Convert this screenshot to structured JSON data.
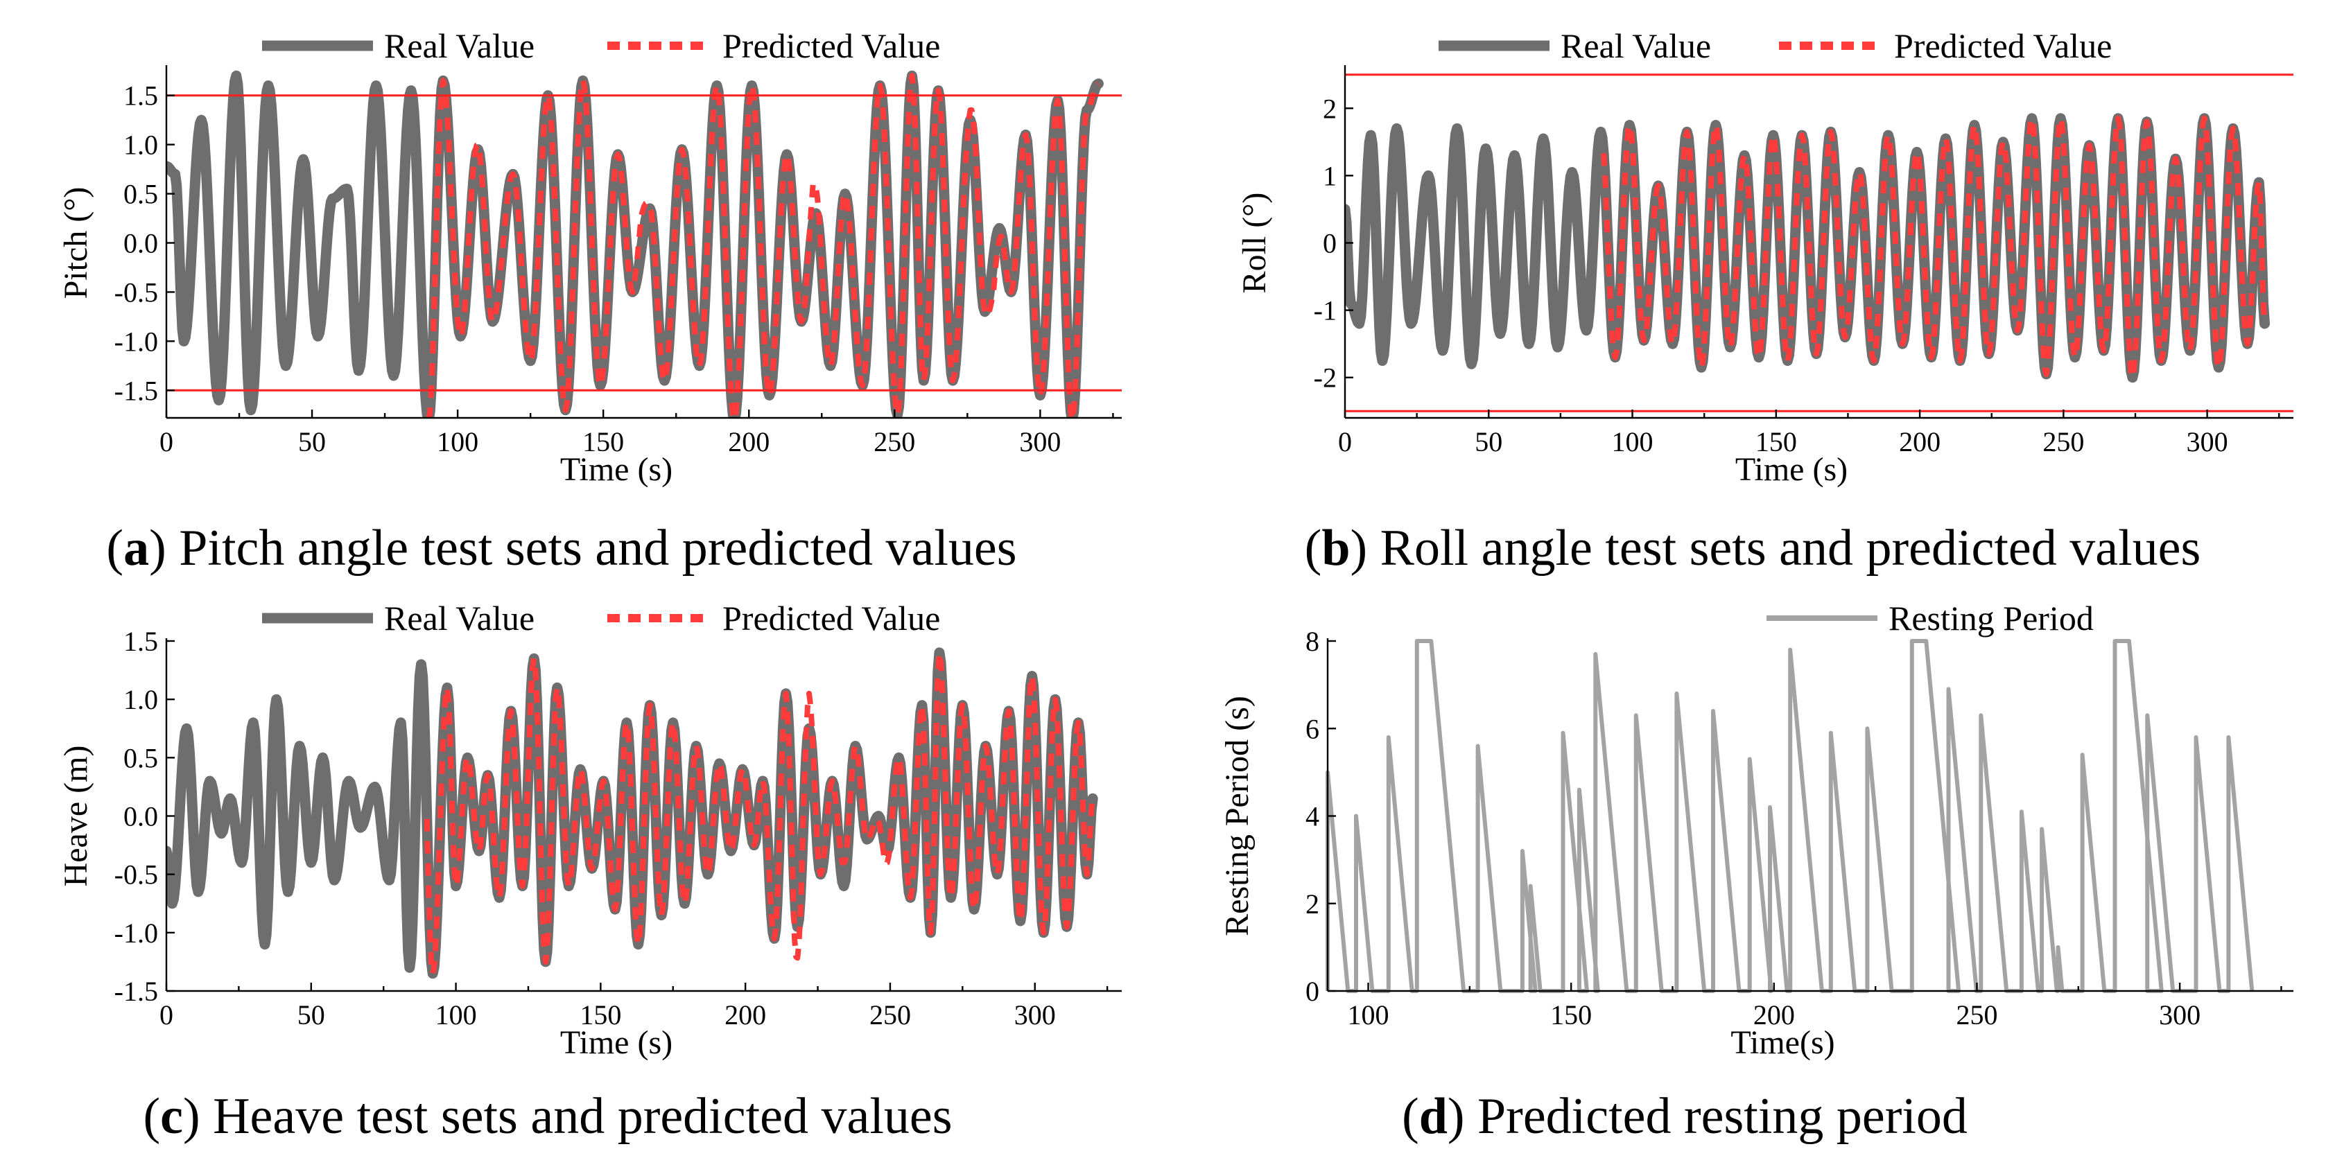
{
  "legend": {
    "real_label": "Real Value",
    "pred_label": "Predicted Value",
    "rest_label": "Resting Period"
  },
  "colors": {
    "real": "#6e6e6e",
    "pred": "#ff3b3b",
    "limit": "#ff1f1f",
    "rest": "#a3a3a3"
  },
  "captions": {
    "a": {
      "letter": "a",
      "text": " Pitch angle test sets and predicted values"
    },
    "b": {
      "letter": "b",
      "text": " Roll angle test sets and predicted values"
    },
    "c": {
      "letter": "c",
      "text": " Heave test sets and predicted values"
    },
    "d": {
      "letter": "d",
      "text": " Predicted resting period"
    }
  },
  "chart_data": [
    {
      "id": "a",
      "type": "line",
      "xlabel": "Time (s)",
      "ylabel": "Pitch (°)",
      "xlim": [
        0,
        328
      ],
      "ylim": [
        -1.78,
        1.78
      ],
      "xticks": [
        0,
        50,
        100,
        150,
        200,
        250,
        300
      ],
      "xtick_labels": [
        "0",
        "50",
        "100",
        "150",
        "200",
        "250",
        "300"
      ],
      "yticks": [
        -1.5,
        -1.0,
        -0.5,
        0.0,
        0.5,
        1.0,
        1.5
      ],
      "ytick_labels": [
        "-1.5",
        "-1.0",
        "-0.5",
        "0.0",
        "0.5",
        "1.0",
        "1.5"
      ],
      "limits": [
        1.5,
        -1.5
      ],
      "pred_start": 90,
      "x_end": 320,
      "real_peaks": [
        [
          0,
          0.78
        ],
        [
          3,
          0.7
        ],
        [
          6,
          -1.0
        ],
        [
          12,
          1.25
        ],
        [
          18,
          -1.6
        ],
        [
          24,
          1.7
        ],
        [
          29,
          -1.7
        ],
        [
          35,
          1.6
        ],
        [
          41,
          -1.25
        ],
        [
          47,
          0.85
        ],
        [
          52,
          -0.95
        ],
        [
          57,
          0.45
        ],
        [
          62,
          0.55
        ],
        [
          66,
          -1.3
        ],
        [
          72,
          1.6
        ],
        [
          78,
          -1.35
        ],
        [
          84,
          1.55
        ],
        [
          90,
          -1.8
        ],
        [
          95,
          1.65
        ],
        [
          101,
          -0.95
        ],
        [
          107,
          0.95
        ],
        [
          112,
          -0.8
        ],
        [
          119,
          0.7
        ],
        [
          125,
          -1.2
        ],
        [
          131,
          1.5
        ],
        [
          137,
          -1.7
        ],
        [
          143,
          1.65
        ],
        [
          149,
          -1.45
        ],
        [
          155,
          0.9
        ],
        [
          160,
          -0.5
        ],
        [
          166,
          0.35
        ],
        [
          171,
          -1.4
        ],
        [
          177,
          0.95
        ],
        [
          183,
          -1.25
        ],
        [
          189,
          1.6
        ],
        [
          195,
          -1.8
        ],
        [
          201,
          1.6
        ],
        [
          207,
          -1.55
        ],
        [
          213,
          0.9
        ],
        [
          218,
          -0.8
        ],
        [
          223,
          0.3
        ],
        [
          228,
          -1.25
        ],
        [
          233,
          0.5
        ],
        [
          239,
          -1.45
        ],
        [
          245,
          1.6
        ],
        [
          251,
          -1.75
        ],
        [
          256,
          1.7
        ],
        [
          260,
          -1.4
        ],
        [
          265,
          1.55
        ],
        [
          270,
          -1.4
        ],
        [
          276,
          1.25
        ],
        [
          281,
          -0.7
        ],
        [
          286,
          0.15
        ],
        [
          290,
          -0.5
        ],
        [
          295,
          1.1
        ],
        [
          300,
          -1.55
        ],
        [
          306,
          1.45
        ],
        [
          311,
          -1.8
        ],
        [
          316,
          1.35
        ],
        [
          320,
          1.62
        ]
      ],
      "pred_offsets": [
        [
          105,
          0.15
        ],
        [
          143,
          0.0
        ],
        [
          163,
          0.35
        ],
        [
          222,
          0.4
        ],
        [
          278,
          0.3
        ],
        [
          284,
          -0.35
        ]
      ]
    },
    {
      "id": "b",
      "type": "line",
      "xlabel": "Time (s)",
      "ylabel": "Roll (°)",
      "xlim": [
        0,
        330
      ],
      "ylim": [
        -2.6,
        2.6
      ],
      "xticks": [
        0,
        50,
        100,
        150,
        200,
        250,
        300
      ],
      "xtick_labels": [
        "0",
        "50",
        "100",
        "150",
        "200",
        "250",
        "300"
      ],
      "yticks": [
        -2,
        -1,
        0,
        1,
        2
      ],
      "ytick_labels": [
        "-2",
        "-1",
        "0",
        "1",
        "2"
      ],
      "limits": [
        2.5,
        -2.5
      ],
      "pred_start": 90,
      "x_end": 320,
      "real_peaks": [
        [
          0,
          0.5
        ],
        [
          2,
          -0.9
        ],
        [
          5,
          -1.2
        ],
        [
          9,
          1.6
        ],
        [
          13,
          -1.75
        ],
        [
          18,
          1.7
        ],
        [
          23,
          -1.2
        ],
        [
          29,
          1.0
        ],
        [
          34,
          -1.6
        ],
        [
          39,
          1.7
        ],
        [
          44,
          -1.8
        ],
        [
          49,
          1.4
        ],
        [
          54,
          -1.35
        ],
        [
          59,
          1.3
        ],
        [
          64,
          -1.5
        ],
        [
          69,
          1.55
        ],
        [
          74,
          -1.55
        ],
        [
          79,
          1.05
        ],
        [
          84,
          -1.3
        ],
        [
          89,
          1.65
        ],
        [
          94,
          -1.7
        ],
        [
          99,
          1.75
        ],
        [
          104,
          -1.45
        ],
        [
          109,
          0.85
        ],
        [
          114,
          -1.5
        ],
        [
          119,
          1.65
        ],
        [
          124,
          -1.85
        ],
        [
          129,
          1.75
        ],
        [
          134,
          -1.55
        ],
        [
          139,
          1.3
        ],
        [
          144,
          -1.7
        ],
        [
          149,
          1.6
        ],
        [
          154,
          -1.75
        ],
        [
          159,
          1.6
        ],
        [
          164,
          -1.65
        ],
        [
          169,
          1.65
        ],
        [
          174,
          -1.4
        ],
        [
          179,
          1.05
        ],
        [
          184,
          -1.75
        ],
        [
          189,
          1.6
        ],
        [
          194,
          -1.5
        ],
        [
          199,
          1.35
        ],
        [
          204,
          -1.7
        ],
        [
          209,
          1.55
        ],
        [
          214,
          -1.75
        ],
        [
          219,
          1.75
        ],
        [
          224,
          -1.65
        ],
        [
          229,
          1.5
        ],
        [
          234,
          -1.3
        ],
        [
          239,
          1.85
        ],
        [
          244,
          -1.95
        ],
        [
          249,
          1.85
        ],
        [
          254,
          -1.7
        ],
        [
          259,
          1.45
        ],
        [
          264,
          -1.6
        ],
        [
          269,
          1.85
        ],
        [
          274,
          -2.0
        ],
        [
          279,
          1.8
        ],
        [
          284,
          -1.75
        ],
        [
          289,
          1.25
        ],
        [
          294,
          -1.6
        ],
        [
          299,
          1.85
        ],
        [
          304,
          -1.85
        ],
        [
          309,
          1.7
        ],
        [
          314,
          -1.5
        ],
        [
          318,
          0.9
        ],
        [
          320,
          -1.2
        ]
      ],
      "pred_offsets": []
    },
    {
      "id": "c",
      "type": "line",
      "xlabel": "Time (s)",
      "ylabel": "Heave (m)",
      "xlim": [
        0,
        330
      ],
      "ylim": [
        -1.5,
        1.5
      ],
      "xticks": [
        0,
        50,
        100,
        150,
        200,
        250,
        300
      ],
      "xtick_labels": [
        "0",
        "50",
        "100",
        "150",
        "200",
        "250",
        "300"
      ],
      "yticks": [
        -1.5,
        -1.0,
        -0.5,
        0.0,
        0.5,
        1.0,
        1.5
      ],
      "ytick_labels": [
        "-1.5",
        "-1.0",
        "-0.5",
        "0.0",
        "0.5",
        "1.0",
        "1.5"
      ],
      "limits": [],
      "pred_start": 90,
      "x_end": 320,
      "real_peaks": [
        [
          0,
          -0.3
        ],
        [
          2,
          -0.75
        ],
        [
          7,
          0.75
        ],
        [
          11,
          -0.65
        ],
        [
          15,
          0.3
        ],
        [
          19,
          -0.15
        ],
        [
          22,
          0.15
        ],
        [
          26,
          -0.4
        ],
        [
          30,
          0.8
        ],
        [
          34,
          -1.1
        ],
        [
          38,
          1.0
        ],
        [
          42,
          -0.65
        ],
        [
          46,
          0.6
        ],
        [
          50,
          -0.4
        ],
        [
          54,
          0.5
        ],
        [
          58,
          -0.55
        ],
        [
          63,
          0.3
        ],
        [
          67,
          -0.1
        ],
        [
          72,
          0.25
        ],
        [
          77,
          -0.55
        ],
        [
          81,
          0.8
        ],
        [
          84,
          -1.3
        ],
        [
          88,
          1.3
        ],
        [
          92,
          -1.35
        ],
        [
          97,
          1.1
        ],
        [
          100,
          -0.6
        ],
        [
          104,
          0.5
        ],
        [
          108,
          -0.3
        ],
        [
          111,
          0.35
        ],
        [
          115,
          -0.7
        ],
        [
          119,
          0.9
        ],
        [
          123,
          -0.6
        ],
        [
          127,
          1.35
        ],
        [
          131,
          -1.25
        ],
        [
          135,
          1.1
        ],
        [
          139,
          -0.6
        ],
        [
          143,
          0.4
        ],
        [
          147,
          -0.45
        ],
        [
          151,
          0.3
        ],
        [
          155,
          -0.8
        ],
        [
          159,
          0.8
        ],
        [
          163,
          -1.1
        ],
        [
          167,
          0.95
        ],
        [
          171,
          -0.85
        ],
        [
          175,
          0.8
        ],
        [
          179,
          -0.75
        ],
        [
          183,
          0.6
        ],
        [
          187,
          -0.5
        ],
        [
          191,
          0.45
        ],
        [
          195,
          -0.3
        ],
        [
          199,
          0.4
        ],
        [
          203,
          -0.25
        ],
        [
          206,
          0.3
        ],
        [
          210,
          -1.05
        ],
        [
          214,
          1.05
        ],
        [
          218,
          -0.95
        ],
        [
          222,
          0.75
        ],
        [
          226,
          -0.5
        ],
        [
          230,
          0.3
        ],
        [
          234,
          -0.6
        ],
        [
          238,
          0.6
        ],
        [
          242,
          -0.2
        ],
        [
          246,
          0.0
        ],
        [
          249,
          -0.3
        ],
        [
          253,
          0.5
        ],
        [
          257,
          -0.7
        ],
        [
          261,
          0.95
        ],
        [
          264,
          -1.0
        ],
        [
          267,
          1.4
        ],
        [
          271,
          -0.7
        ],
        [
          275,
          0.95
        ],
        [
          279,
          -0.8
        ],
        [
          283,
          0.6
        ],
        [
          287,
          -0.5
        ],
        [
          291,
          0.9
        ],
        [
          295,
          -0.9
        ],
        [
          299,
          1.2
        ],
        [
          303,
          -1.0
        ],
        [
          307,
          1.0
        ],
        [
          311,
          -0.95
        ],
        [
          315,
          0.8
        ],
        [
          318,
          -0.5
        ],
        [
          320,
          0.15
        ]
      ],
      "pred_offsets": [
        [
          217,
          -0.4
        ],
        [
          222,
          0.3
        ],
        [
          234,
          0.2
        ],
        [
          248,
          -0.15
        ]
      ]
    },
    {
      "id": "d",
      "type": "line",
      "xlabel": "Time(s)",
      "ylabel": "Resting Period (s)",
      "xlim": [
        90,
        328
      ],
      "ylim": [
        0,
        8
      ],
      "xticks": [
        100,
        150,
        200,
        250,
        300
      ],
      "xtick_labels": [
        "100",
        "150",
        "200",
        "250",
        "300"
      ],
      "yticks": [
        0,
        2,
        4,
        6,
        8
      ],
      "ytick_labels": [
        "0",
        "2",
        "4",
        "6",
        "8"
      ],
      "ramps": [
        [
          90,
          5.0
        ],
        [
          97,
          4.0
        ],
        [
          105,
          5.8
        ],
        [
          112,
          8.0
        ],
        [
          127,
          5.6
        ],
        [
          138,
          3.2
        ],
        [
          140,
          2.4
        ],
        [
          148,
          5.9
        ],
        [
          152,
          4.6
        ],
        [
          156,
          7.7
        ],
        [
          166,
          6.3
        ],
        [
          176,
          6.8
        ],
        [
          185,
          6.4
        ],
        [
          194,
          5.3
        ],
        [
          199,
          4.2
        ],
        [
          204,
          7.8
        ],
        [
          214,
          5.9
        ],
        [
          223,
          6.0
        ],
        [
          234,
          8.0
        ],
        [
          243,
          6.9
        ],
        [
          251,
          6.3
        ],
        [
          261,
          4.1
        ],
        [
          266,
          3.7
        ],
        [
          270,
          1.0
        ],
        [
          276,
          5.4
        ],
        [
          284,
          8.0
        ],
        [
          292,
          6.3
        ],
        [
          304,
          5.8
        ],
        [
          312,
          5.8
        ]
      ]
    }
  ]
}
